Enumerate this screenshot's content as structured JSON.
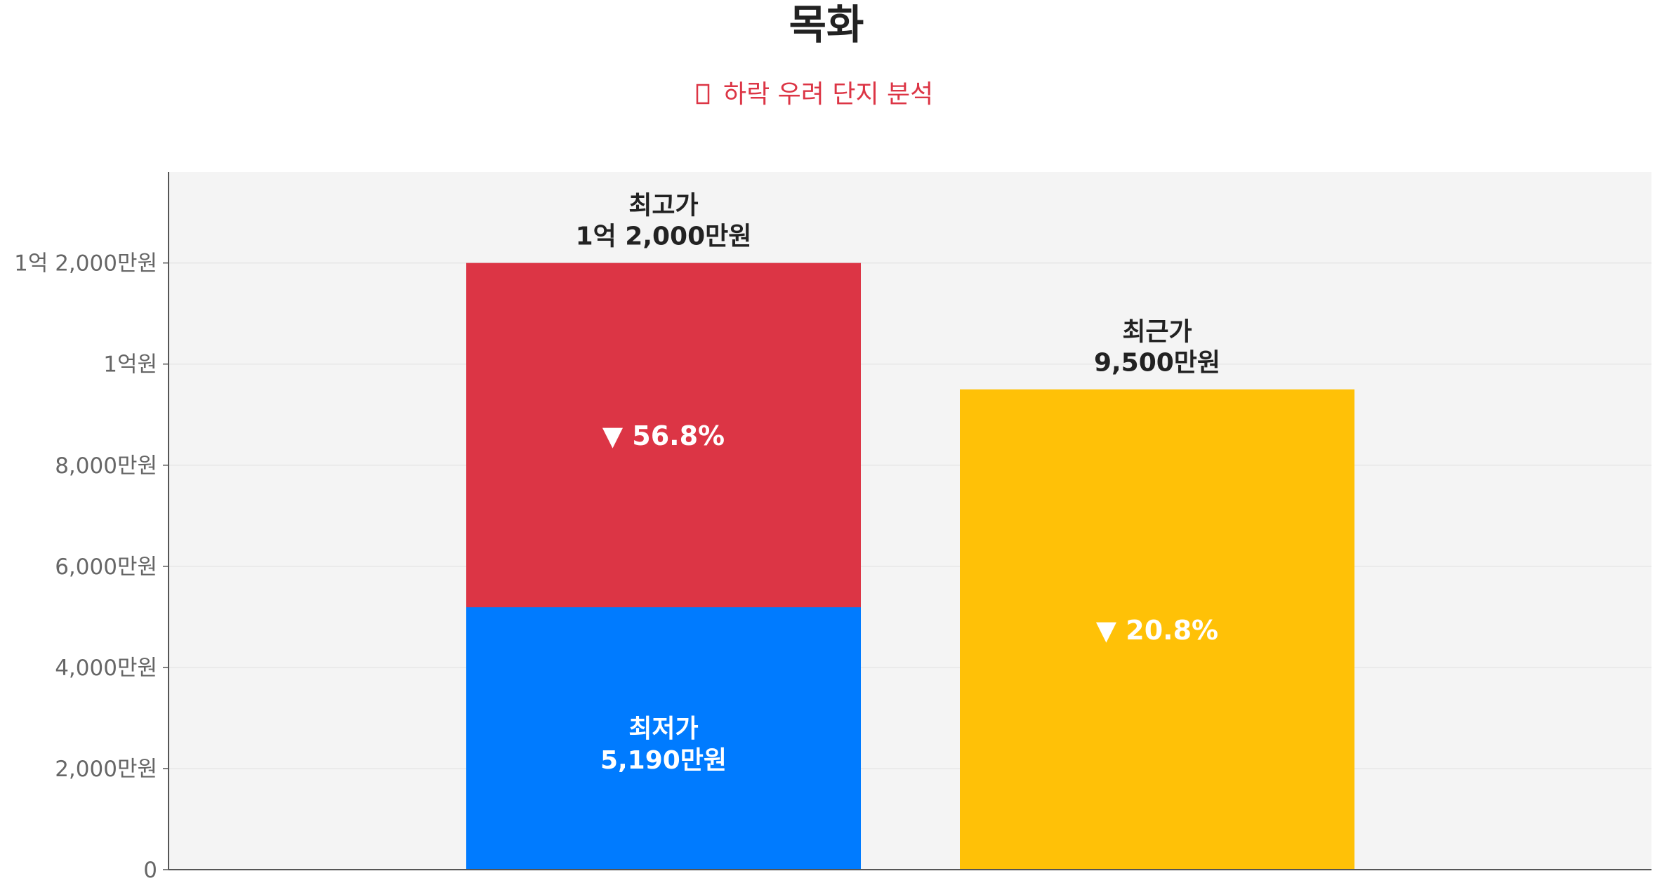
{
  "chart_data": {
    "type": "bar",
    "title": "목화",
    "subtitle": "하락 우려 단지 분석",
    "subtitle_icon": "warning-icon",
    "y_axis": {
      "ylim": [
        0,
        13800
      ],
      "unit": "만원",
      "ticks": [
        {
          "value": 0,
          "label": "0"
        },
        {
          "value": 2000,
          "label": "2,000만원"
        },
        {
          "value": 4000,
          "label": "4,000만원"
        },
        {
          "value": 6000,
          "label": "6,000만원"
        },
        {
          "value": 8000,
          "label": "8,000만원"
        },
        {
          "value": 10000,
          "label": "1억원"
        },
        {
          "value": 12000,
          "label": "1억 2,000만원"
        }
      ],
      "grid": true
    },
    "bars": [
      {
        "name": "최고가",
        "value": 12000,
        "value_label": "1억 2,000만원",
        "color": "#dc3545",
        "stacked": {
          "name": "최저가",
          "value": 5190,
          "value_label": "5,190만원",
          "color": "#007bff"
        },
        "change_label": "▼ 56.8%"
      },
      {
        "name": "최근가",
        "value": 9500,
        "value_label": "9,500만원",
        "color": "#ffc107",
        "change_label": "▼ 20.8%"
      }
    ],
    "plot_background": "#f4f4f4",
    "axis_color": "#555555"
  }
}
